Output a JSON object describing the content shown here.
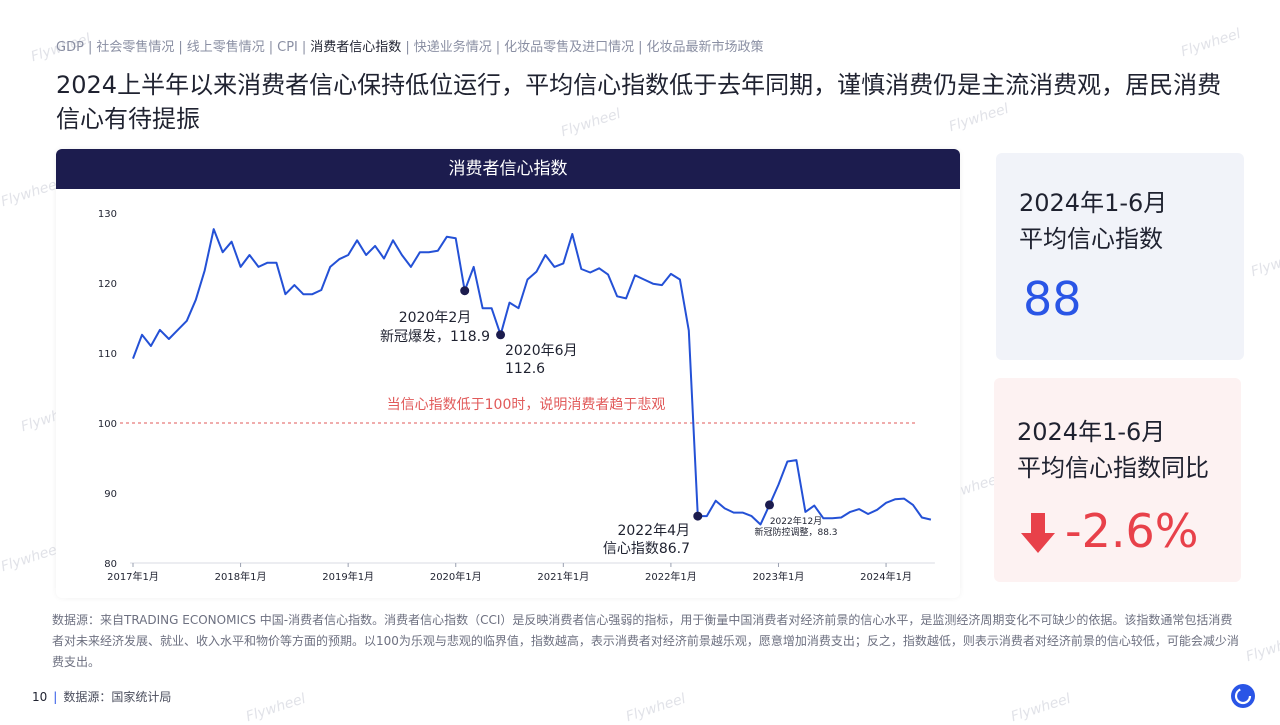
{
  "nav": {
    "items": [
      {
        "label": "GDP",
        "active": false
      },
      {
        "label": "社会零售情况",
        "active": false
      },
      {
        "label": "线上零售情况",
        "active": false
      },
      {
        "label": "CPI",
        "active": false
      },
      {
        "label": "消费者信心指数",
        "active": true
      },
      {
        "label": "快递业务情况",
        "active": false
      },
      {
        "label": "化妆品零售及进口情况",
        "active": false
      },
      {
        "label": "化妆品最新市场政策",
        "active": false
      }
    ],
    "separator": "|"
  },
  "headline": "2024上半年以来消费者信心保持低位运行，平均信心指数低于去年同期，谨慎消费仍是主流消费观，居民消费信心有待提振",
  "chart_title": "消费者信心指数",
  "chart_data": {
    "type": "line",
    "title": "消费者信心指数",
    "xlabel": "",
    "ylabel": "",
    "ylim": [
      80,
      130
    ],
    "y_ticks": [
      80,
      90,
      100,
      110,
      120,
      130
    ],
    "x_tick_labels": [
      "2017年1月",
      "2018年1月",
      "2019年1月",
      "2020年1月",
      "2021年1月",
      "2022年1月",
      "2023年1月",
      "2024年1月"
    ],
    "x_start": "2017-01",
    "series": [
      {
        "name": "",
        "color": "#2451d6",
        "values": [
          109.2,
          112.6,
          111.0,
          113.3,
          112.0,
          113.3,
          114.6,
          117.6,
          121.8,
          127.7,
          124.4,
          125.9,
          122.3,
          124.0,
          122.3,
          122.9,
          122.9,
          118.4,
          119.7,
          118.4,
          118.4,
          119.0,
          122.3,
          123.4,
          124.0,
          126.1,
          124.0,
          125.3,
          123.5,
          126.1,
          124.0,
          122.3,
          124.4,
          124.4,
          124.6,
          126.6,
          126.4,
          118.9,
          122.3,
          116.4,
          116.4,
          112.6,
          117.2,
          116.4,
          120.5,
          121.6,
          124.0,
          122.3,
          122.8,
          127.0,
          122.0,
          121.5,
          122.1,
          121.2,
          118.1,
          117.8,
          121.1,
          120.5,
          119.9,
          119.7,
          121.3,
          120.5,
          113.2,
          86.7,
          86.7,
          88.9,
          87.8,
          87.2,
          87.2,
          86.7,
          85.5,
          88.3,
          91.2,
          94.5,
          94.7,
          87.3,
          88.2,
          86.4,
          86.4,
          86.5,
          87.3,
          87.7,
          87.0,
          87.6,
          88.6,
          89.1,
          89.2,
          88.3,
          86.5,
          86.2
        ],
        "highlight_points": [
          {
            "index": 37,
            "value": 118.9
          },
          {
            "index": 41,
            "value": 112.6
          },
          {
            "index": 63,
            "value": 86.7
          },
          {
            "index": 71,
            "value": 88.3
          }
        ]
      }
    ],
    "reference_line": {
      "value": 100,
      "color": "#e15a5a",
      "label": "当信心指数低于100时，说明消费者趋于悲观"
    },
    "annotations": [
      {
        "line1": "2020年2月",
        "line2": "新冠爆发，118.9"
      },
      {
        "line1": "2020年6月",
        "line2": "112.6"
      },
      {
        "line1": "2022年4月",
        "line2": "信心指数86.7"
      },
      {
        "line1": "2022年12月",
        "line2": "新冠防控调整，88.3"
      }
    ],
    "grid": false,
    "legend": "none"
  },
  "card1": {
    "line1": "2024年1-6月",
    "line2": "平均信心指数",
    "value": "88"
  },
  "card2": {
    "line1": "2024年1-6月",
    "line2": "平均信心指数同比",
    "value": "-2.6%"
  },
  "source_note": "数据源：来自TRADING ECONOMICS 中国-消费者信心指数。消费者信心指数（CCI）是反映消费者信心强弱的指标，用于衡量中国消费者对经济前景的信心水平，是监测经济周期变化不可缺少的依据。该指数通常包括消费者对未来经济发展、就业、收入水平和物价等方面的预期。以100为乐观与悲观的临界值，指数越高，表示消费者对经济前景越乐观，愿意增加消费支出；反之，指数越低，则表示消费者对经济前景的信心较低，可能会减少消费支出。",
  "footer": {
    "page_number": "10",
    "source": "数据源：国家统计局"
  },
  "watermark": "Flywheel",
  "colors": {
    "accent": "#2a55e6",
    "navy": "#1c1c4e",
    "negative": "#e8414a"
  }
}
